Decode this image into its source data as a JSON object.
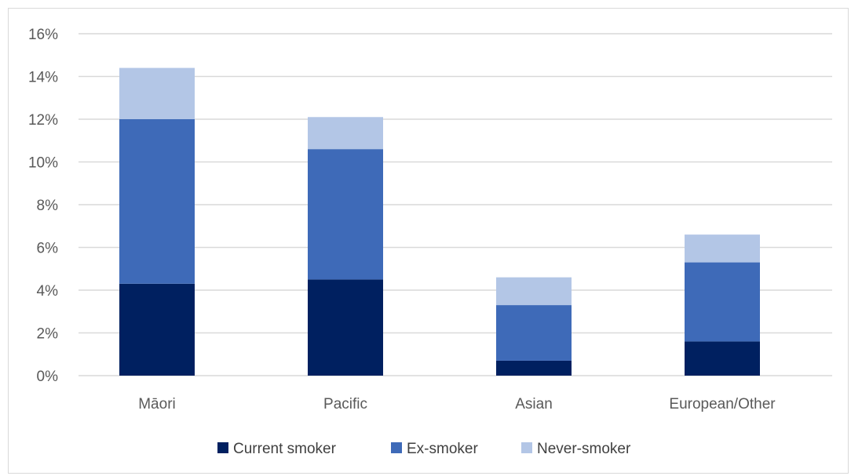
{
  "chart_data": {
    "type": "bar",
    "stacked": true,
    "title": "",
    "xlabel": "",
    "ylabel": "",
    "categories": [
      "Māori",
      "Pacific",
      "Asian",
      "European/Other"
    ],
    "series": [
      {
        "name": "Current smoker",
        "values": [
          4.3,
          4.5,
          0.7,
          1.6
        ],
        "color": "#002060"
      },
      {
        "name": "Ex-smoker",
        "values": [
          7.7,
          6.1,
          2.6,
          3.7
        ],
        "color": "#3e6ab8"
      },
      {
        "name": "Never-smoker",
        "values": [
          2.4,
          1.5,
          1.3,
          1.3
        ],
        "color": "#b3c6e6"
      }
    ],
    "ylim": [
      0,
      16
    ],
    "yticks": [
      0,
      2,
      4,
      6,
      8,
      10,
      12,
      14,
      16
    ],
    "ytick_format": "%",
    "grid": true,
    "grid_color": "#d9d9d9",
    "legend_position": "bottom"
  }
}
